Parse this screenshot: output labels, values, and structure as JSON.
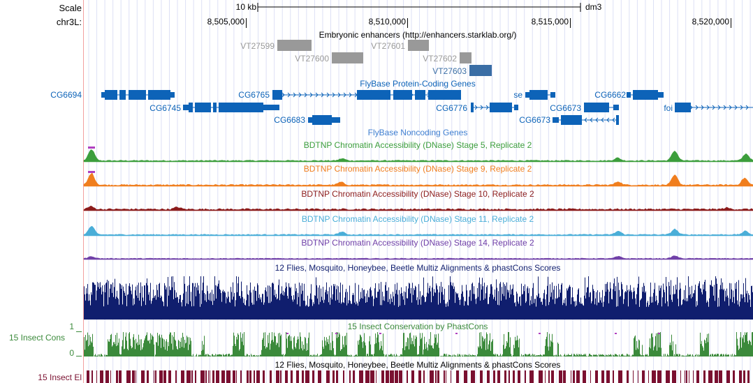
{
  "scale": {
    "label": "Scale",
    "bar_label": "10 kb",
    "assembly": "dm3"
  },
  "position": {
    "chrom_label": "chr3L:",
    "ticks": [
      "8,505,000",
      "8,510,000",
      "8,515,000",
      "8,520,000"
    ]
  },
  "tracks": {
    "enhancers": {
      "title": "Embryonic enhancers (http://enhancers.starklab.org/)",
      "items": [
        {
          "name": "VT27599",
          "color": "#999999"
        },
        {
          "name": "VT27600",
          "color": "#999999"
        },
        {
          "name": "VT27601",
          "color": "#999999"
        },
        {
          "name": "VT27602",
          "color": "#999999"
        },
        {
          "name": "VT27603",
          "color": "#3a6ea5"
        }
      ]
    },
    "genes": {
      "title": "FlyBase Protein-Coding Genes",
      "color": "#0d63b8",
      "labels": [
        "CG6694",
        "CG6765",
        "CG6745",
        "CG6683",
        "se",
        "CG6662",
        "CG6776",
        "CG6673",
        "CG6673",
        "foi"
      ]
    },
    "noncoding": {
      "title": "FlyBase Noncoding Genes",
      "color": "#3f7fd1"
    },
    "dnase": [
      {
        "title": "BDTNP Chromatin Accessibility (DNase) Stage 5, Replicate 2",
        "color": "#3c9e3c"
      },
      {
        "title": "BDTNP Chromatin Accessibility (DNase) Stage 9, Replicate 2",
        "color": "#f07e1e"
      },
      {
        "title": "BDTNP Chromatin Accessibility (DNase) Stage 10, Replicate 2",
        "color": "#8c1c1c"
      },
      {
        "title": "BDTNP Chromatin Accessibility (DNase) Stage 11, Replicate 2",
        "color": "#4aaed8"
      },
      {
        "title": "BDTNP Chromatin Accessibility (DNase) Stage 14, Replicate 2",
        "color": "#7040a8"
      }
    ],
    "multiz": {
      "title": "12 Flies, Mosquito, Honeybee, Beetle Multiz Alignments & phastCons Scores",
      "color": "#101e6e"
    },
    "cons": {
      "side_label": "15 Insect Cons",
      "title": "15 Insect Conservation by PhastCons",
      "axis_max": "1",
      "axis_min": "0",
      "color": "#3b8a3b"
    },
    "elements": {
      "side_label": "15 Insect El",
      "title": "12 Flies, Mosquito, Honeybee, Beetle Multiz Alignments & phastCons Scores",
      "color": "#7a1030"
    }
  }
}
